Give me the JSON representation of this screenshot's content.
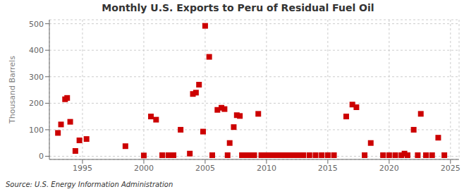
{
  "chart_data": {
    "type": "scatter",
    "title": "Monthly U.S. Exports to Peru of Residual Fuel Oil",
    "y_label": "Thousand Barrels",
    "annotations": [
      "Source: U.S. Energy Information Administration"
    ],
    "x": [
      1993.0,
      1993.25,
      1993.58,
      1993.75,
      1994.0,
      1994.42,
      1994.75,
      1995.33,
      1998.5,
      2000.0,
      2000.58,
      2001.0,
      2001.5,
      2002.0,
      2002.42,
      2003.0,
      2003.75,
      2004.0,
      2004.25,
      2004.5,
      2004.83,
      2005.0,
      2005.33,
      2005.58,
      2006.0,
      2006.33,
      2006.58,
      2006.83,
      2007.0,
      2007.33,
      2007.58,
      2007.83,
      2008.0,
      2008.25,
      2008.58,
      2009.0,
      2009.33,
      2009.58,
      2010.0,
      2010.25,
      2010.58,
      2010.83,
      2011.0,
      2011.33,
      2011.58,
      2012.0,
      2012.33,
      2012.58,
      2013.0,
      2013.5,
      2014.0,
      2014.5,
      2015.0,
      2015.5,
      2016.5,
      2017.0,
      2017.33,
      2018.0,
      2018.5,
      2019.5,
      2020.0,
      2020.5,
      2021.0,
      2021.25,
      2021.5,
      2022.0,
      2022.33,
      2022.58,
      2023.0,
      2023.5,
      2024.0,
      2024.5
    ],
    "values": [
      88,
      120,
      215,
      220,
      130,
      20,
      60,
      65,
      38,
      3,
      150,
      138,
      4,
      4,
      4,
      100,
      10,
      235,
      240,
      270,
      93,
      492,
      375,
      4,
      175,
      183,
      178,
      4,
      50,
      110,
      155,
      152,
      4,
      4,
      4,
      4,
      160,
      4,
      4,
      4,
      4,
      4,
      4,
      4,
      4,
      4,
      4,
      4,
      4,
      4,
      4,
      4,
      4,
      4,
      150,
      195,
      185,
      4,
      50,
      4,
      4,
      4,
      4,
      10,
      4,
      100,
      4,
      160,
      4,
      4,
      70,
      4
    ],
    "color": "#cc0000",
    "marker": "square",
    "xlim": [
      1992.3,
      2025.7
    ],
    "xticks": [
      1995,
      2000,
      2005,
      2010,
      2015,
      2020,
      2025
    ],
    "ylim": [
      -12,
      515
    ],
    "yticks": [
      0,
      100,
      200,
      300,
      400,
      500
    ],
    "grid": true
  }
}
